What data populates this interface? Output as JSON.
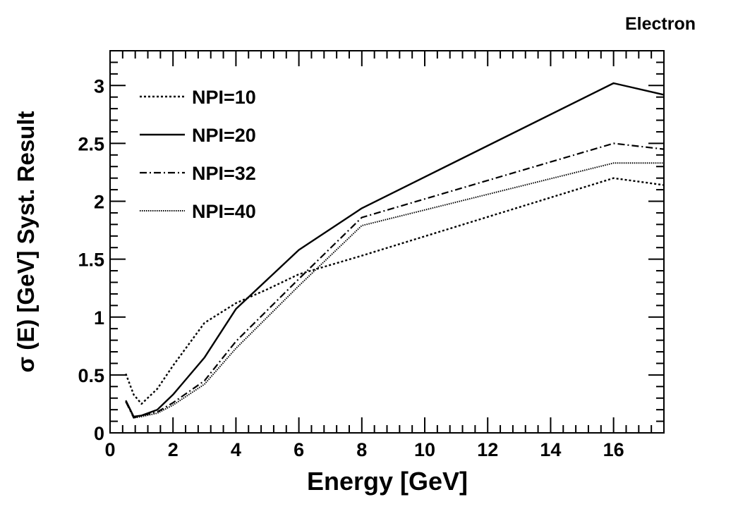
{
  "chart_data": {
    "type": "line",
    "title": "Electron",
    "xlabel": "Energy [GeV]",
    "ylabel": "σ (E) [GeV] Syst. Result",
    "xlim": [
      0,
      17.6
    ],
    "ylim": [
      0,
      3.3
    ],
    "xticks": [
      0,
      2,
      4,
      6,
      8,
      10,
      12,
      14,
      16
    ],
    "xtick_labels": [
      "0",
      "2",
      "4",
      "6",
      "8",
      "10",
      "12",
      "14",
      "16"
    ],
    "yticks": [
      0,
      0.5,
      1,
      1.5,
      2,
      2.5,
      3
    ],
    "ytick_labels": [
      "0",
      "0.5",
      "1",
      "1.5",
      "2",
      "2.5",
      "3"
    ],
    "grid": false,
    "legend_position": "top-left",
    "series": [
      {
        "name": "NPI=10",
        "style": "dotted",
        "x": [
          0.5,
          0.75,
          1,
          1.5,
          2,
          3,
          4,
          5,
          6,
          8,
          16,
          17.6
        ],
        "y": [
          0.51,
          0.33,
          0.25,
          0.38,
          0.58,
          0.95,
          1.12,
          1.24,
          1.37,
          1.53,
          2.2,
          2.14
        ]
      },
      {
        "name": "NPI=20",
        "style": "solid",
        "x": [
          0.5,
          0.75,
          1,
          1.5,
          2,
          3,
          4,
          6,
          8,
          16,
          17.6
        ],
        "y": [
          0.28,
          0.14,
          0.15,
          0.2,
          0.33,
          0.65,
          1.07,
          1.58,
          1.94,
          3.02,
          2.92
        ]
      },
      {
        "name": "NPI=32",
        "style": "dashdot",
        "x": [
          0.5,
          0.75,
          1,
          1.5,
          2,
          3,
          4,
          6,
          8,
          16,
          17.6
        ],
        "y": [
          0.27,
          0.13,
          0.15,
          0.18,
          0.26,
          0.45,
          0.79,
          1.33,
          1.86,
          2.5,
          2.45
        ]
      },
      {
        "name": "NPI=40",
        "style": "finedot",
        "x": [
          0.5,
          0.75,
          1,
          1.5,
          2,
          3,
          4,
          6,
          8,
          16,
          17.6
        ],
        "y": [
          0.27,
          0.13,
          0.14,
          0.17,
          0.24,
          0.42,
          0.73,
          1.27,
          1.79,
          2.33,
          2.33
        ]
      }
    ]
  }
}
